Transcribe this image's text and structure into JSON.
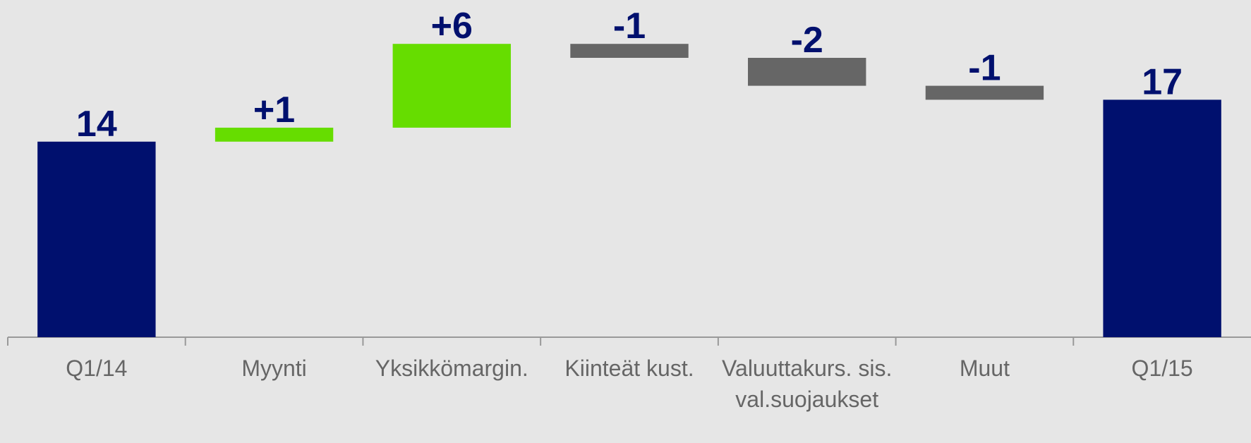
{
  "chart_data": {
    "type": "waterfall",
    "categories": [
      "Q1/14",
      "Myynti",
      "Yksikkömargin.",
      "Kiinteät kust.",
      "Valuuttakurs. sis. val.suojaukset",
      "Muut",
      "Q1/15"
    ],
    "values": [
      14,
      1,
      6,
      -1,
      -2,
      -1,
      17
    ],
    "value_labels": [
      "14",
      "+1",
      "+6",
      "-1",
      "-2",
      "-1",
      "17"
    ],
    "colors": [
      "#00106e",
      "#66dd00",
      "#66dd00",
      "#666666",
      "#666666",
      "#666666",
      "#00106e"
    ]
  }
}
